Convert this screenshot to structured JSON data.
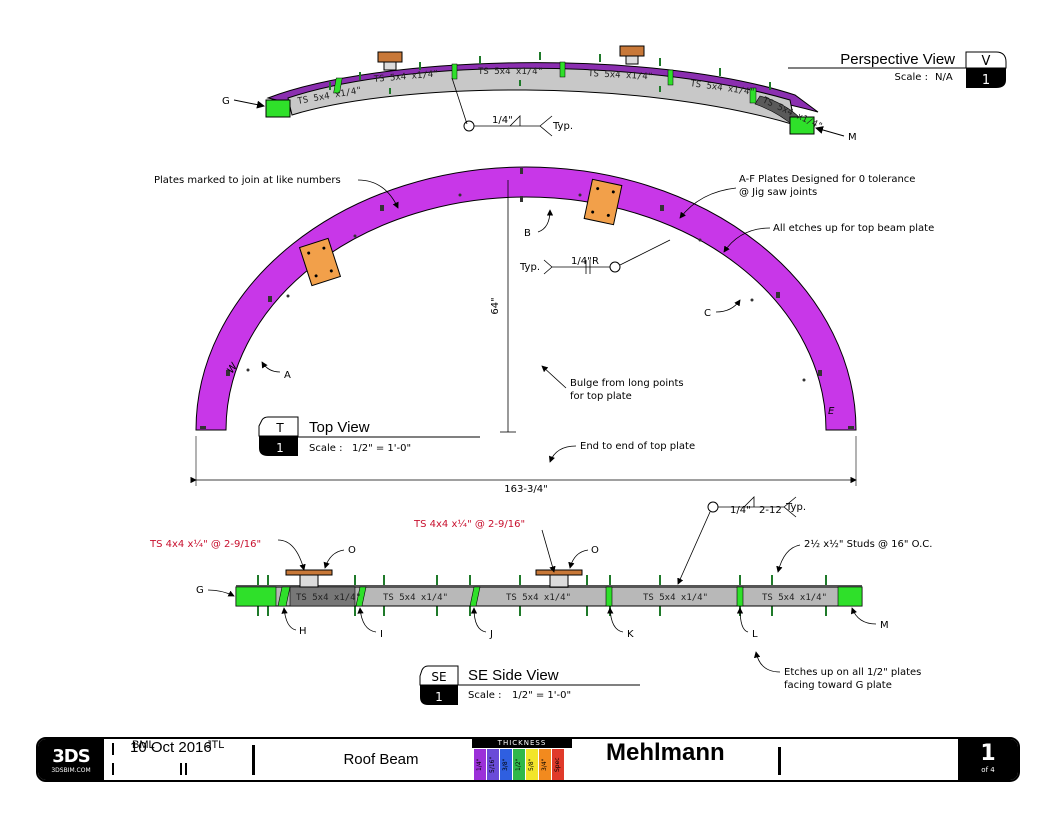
{
  "perspective_view": {
    "title": "Perspective View",
    "tag_letter": "V",
    "tag_number": "1",
    "scale_label": "Scale :",
    "scale_value": "N/A",
    "beam_labels": [
      "TS 5x4 x1/4\"",
      "TS 5x4 x1/4\"",
      "TS 5x4 x1/4\"",
      "TS 5x4 x1/4\"",
      "TS 5x4 x1/4\"",
      "TS 5x4 x1/4\""
    ],
    "weld_size": "1/4\"",
    "weld_typ": "Typ.",
    "left_label": "G",
    "right_label": "M"
  },
  "top_view": {
    "title": "Top View",
    "tag_letter": "T",
    "tag_number": "1",
    "scale_label": "Scale :",
    "scale_value": "1/2\" = 1'-0\"",
    "height_dim": "64\"",
    "width_dim": "163-3/4\"",
    "notes": {
      "plates_marked": "Plates marked to join at like numbers",
      "a_f_line1": "A-F Plates Designed for 0 tolerance",
      "a_f_line2": "@ Jig saw joints",
      "etches_up": "All etches up for top beam plate",
      "bulge_line1": "Bulge from long points",
      "bulge_line2": "for top plate",
      "end_to_end": "End to end of top plate"
    },
    "weld": {
      "typ": "Typ.",
      "size": "1/4\"",
      "symbol": "R"
    },
    "point_labels": {
      "a": "A",
      "b": "B",
      "c": "C",
      "w": "W",
      "e": "E"
    }
  },
  "side_view": {
    "title": "SE Side View",
    "tag_letter": "SE",
    "tag_number": "1",
    "scale_label": "Scale :",
    "scale_value": "1/2\" = 1'-0\"",
    "red_note_left": "TS 4x4 x¼\" @ 2-9/16\"",
    "red_note_right": "TS 4x4 x¼\" @ 2-9/16\"",
    "studs_note": "2½ x½\" Studs @ 16\" O.C.",
    "etches_line1": "Etches up on all 1/2\" plates",
    "etches_line2": "facing toward G plate",
    "weld": {
      "size": "1/4\"",
      "pitch": "2-12",
      "typ": "Typ."
    },
    "beam_labels": [
      "TS 5x4 x1/4\"",
      "TS 5x4 x1/4\"",
      "TS 5x4 x1/4\"",
      "TS 5x4 x1/4\"",
      "TS 5x4 x1/4\""
    ],
    "labels": {
      "g": "G",
      "m": "M",
      "o_left": "O",
      "o_right": "O",
      "h": "H",
      "i": "I",
      "j": "J",
      "k": "K",
      "l": "L"
    }
  },
  "title_block": {
    "logo_text": "3DS",
    "logo_url": "3DSBIM.COM",
    "date": "10 Oct 2016",
    "drawn_by": "BML",
    "checked_by": "JTL",
    "description": "Roof Beam",
    "thickness_title": "THICKNESS",
    "thickness_swatches": [
      {
        "label": "1/4\"",
        "color": "#9b30d9"
      },
      {
        "label": "5/16\"",
        "color": "#6a4bd8"
      },
      {
        "label": "3/8\"",
        "color": "#2f5fe0"
      },
      {
        "label": "1/2\"",
        "color": "#2fb84a"
      },
      {
        "label": "5/8\"",
        "color": "#f2e52a"
      },
      {
        "label": "3/4\"",
        "color": "#f28a1e"
      },
      {
        "label": "Spec",
        "color": "#e03a2a"
      }
    ],
    "project_name": "Mehlmann",
    "page_number": "1",
    "page_of": "of 4"
  },
  "colors": {
    "arc_purple": "#c837e8",
    "perspective_purple": "#8b2fb0",
    "plate_green": "#2fe02a",
    "plate_orange": "#f2a04a",
    "beam_gray": "#b8b8b8",
    "dark_gray": "#777777",
    "stud_green": "#1f7a2a",
    "red_text": "#c8102e"
  }
}
